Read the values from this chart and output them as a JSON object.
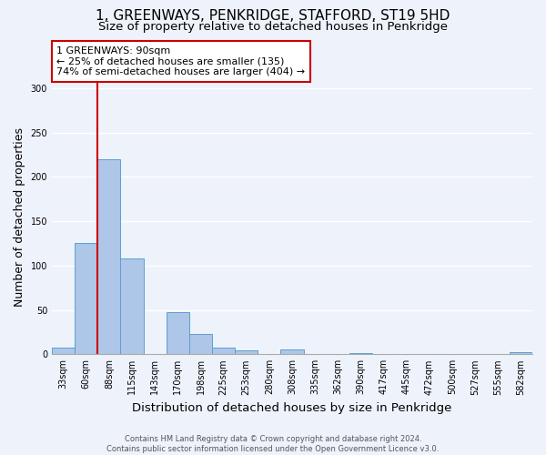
{
  "title": "1, GREENWAYS, PENKRIDGE, STAFFORD, ST19 5HD",
  "subtitle": "Size of property relative to detached houses in Penkridge",
  "xlabel": "Distribution of detached houses by size in Penkridge",
  "ylabel": "Number of detached properties",
  "bin_labels": [
    "33sqm",
    "60sqm",
    "88sqm",
    "115sqm",
    "143sqm",
    "170sqm",
    "198sqm",
    "225sqm",
    "253sqm",
    "280sqm",
    "308sqm",
    "335sqm",
    "362sqm",
    "390sqm",
    "417sqm",
    "445sqm",
    "472sqm",
    "500sqm",
    "527sqm",
    "555sqm",
    "582sqm"
  ],
  "bar_heights": [
    8,
    125,
    220,
    108,
    0,
    48,
    23,
    8,
    4,
    0,
    5,
    0,
    0,
    1,
    0,
    0,
    0,
    0,
    0,
    0,
    2
  ],
  "bar_color": "#aec6e8",
  "bar_edge_color": "#5a9fd4",
  "vline_color": "#cc0000",
  "ylim": [
    0,
    310
  ],
  "yticks": [
    0,
    50,
    100,
    150,
    200,
    250,
    300
  ],
  "annotation_title": "1 GREENWAYS: 90sqm",
  "annotation_line1": "← 25% of detached houses are smaller (135)",
  "annotation_line2": "74% of semi-detached houses are larger (404) →",
  "annotation_box_color": "#ffffff",
  "annotation_box_edge": "#cc0000",
  "footer_line1": "Contains HM Land Registry data © Crown copyright and database right 2024.",
  "footer_line2": "Contains public sector information licensed under the Open Government Licence v3.0.",
  "background_color": "#eef2fb",
  "grid_color": "#ffffff",
  "title_fontsize": 11,
  "subtitle_fontsize": 9.5,
  "ylabel_fontsize": 9,
  "xlabel_fontsize": 9.5,
  "tick_fontsize": 7,
  "annotation_fontsize": 8,
  "footer_fontsize": 6
}
